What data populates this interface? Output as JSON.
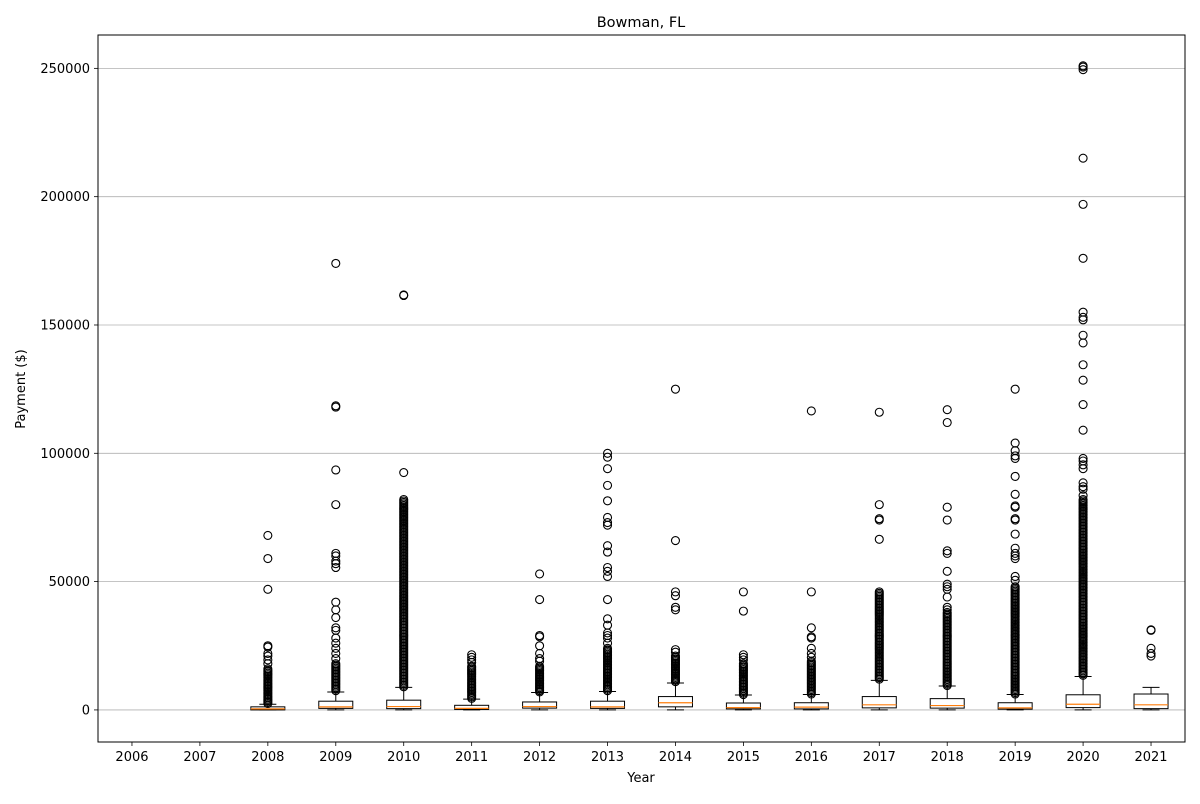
{
  "chart_data": {
    "type": "box",
    "title": "Bowman, FL",
    "xlabel": "Year",
    "ylabel": "Payment ($)",
    "ylim": [
      -12500,
      263000
    ],
    "yticks": [
      0,
      50000,
      100000,
      150000,
      200000,
      250000
    ],
    "grid": "y-major",
    "legend": "none",
    "colors": {
      "box": "#000000",
      "median": "#ff7f0e",
      "grid": "#b0b0b0"
    },
    "categories": [
      "2006",
      "2007",
      "2008",
      "2009",
      "2010",
      "2011",
      "2012",
      "2013",
      "2014",
      "2015",
      "2016",
      "2017",
      "2018",
      "2019",
      "2020",
      "2021"
    ],
    "boxes": [
      {
        "year": "2006",
        "empty": true
      },
      {
        "year": "2007",
        "empty": true
      },
      {
        "year": "2008",
        "whislo": 0,
        "q1": 0,
        "med": 400,
        "q3": 1200,
        "whishi": 2200,
        "dense_range": [
          2500,
          16000
        ],
        "fliers": [
          47000,
          59000,
          68000,
          25000,
          24500,
          22000,
          21000,
          19500,
          18000
        ]
      },
      {
        "year": "2009",
        "whislo": 0,
        "q1": 600,
        "med": 1200,
        "q3": 3400,
        "whishi": 7000,
        "dense_range": [
          7500,
          18000
        ],
        "fliers": [
          174000,
          118500,
          118000,
          93500,
          80000,
          61000,
          60000,
          58000,
          57000,
          55500,
          42000,
          39000,
          36000,
          32000,
          31000,
          28000,
          26000,
          24000,
          22000,
          20000
        ]
      },
      {
        "year": "2010",
        "whislo": 0,
        "q1": 500,
        "med": 1300,
        "q3": 3800,
        "whishi": 8800,
        "dense_range": [
          9000,
          82000
        ],
        "fliers": [
          161500,
          161700,
          92500
        ]
      },
      {
        "year": "2011",
        "whislo": 0,
        "q1": 200,
        "med": 600,
        "q3": 1800,
        "whishi": 4200,
        "dense_range": [
          4500,
          17000
        ],
        "fliers": [
          21500,
          20500,
          19500,
          18500
        ]
      },
      {
        "year": "2012",
        "whislo": 0,
        "q1": 700,
        "med": 1300,
        "q3": 3100,
        "whishi": 6800,
        "dense_range": [
          7000,
          17000
        ],
        "fliers": [
          53000,
          43000,
          29000,
          28500,
          25000,
          22000,
          20000,
          19000
        ]
      },
      {
        "year": "2013",
        "whislo": 0,
        "q1": 600,
        "med": 1200,
        "q3": 3400,
        "whishi": 7200,
        "dense_range": [
          7500,
          24000
        ],
        "fliers": [
          100000,
          98500,
          94000,
          87500,
          81500,
          75000,
          73000,
          72000,
          64000,
          61500,
          55500,
          54000,
          52000,
          43000,
          35500,
          33000,
          30000,
          29000,
          28000,
          26000
        ]
      },
      {
        "year": "2014",
        "whislo": 0,
        "q1": 1200,
        "med": 2800,
        "q3": 5200,
        "whishi": 10500,
        "dense_range": [
          11000,
          21000
        ],
        "fliers": [
          125000,
          66000,
          46000,
          44500,
          40000,
          39000,
          23500,
          22500
        ]
      },
      {
        "year": "2015",
        "whislo": 0,
        "q1": 400,
        "med": 900,
        "q3": 2700,
        "whishi": 5800,
        "dense_range": [
          6000,
          18000
        ],
        "fliers": [
          46000,
          38500,
          21500,
          20500,
          19500
        ]
      },
      {
        "year": "2016",
        "whislo": 0,
        "q1": 400,
        "med": 1100,
        "q3": 2800,
        "whishi": 6000,
        "dense_range": [
          6200,
          19000
        ],
        "fliers": [
          116500,
          46000,
          32000,
          28500,
          28000,
          24000,
          22000,
          20500
        ]
      },
      {
        "year": "2017",
        "whislo": 0,
        "q1": 800,
        "med": 2000,
        "q3": 5200,
        "whishi": 11500,
        "dense_range": [
          12000,
          46000
        ],
        "fliers": [
          116000,
          80000,
          74500,
          74000,
          66500
        ]
      },
      {
        "year": "2018",
        "whislo": 0,
        "q1": 700,
        "med": 1700,
        "q3": 4400,
        "whishi": 9300,
        "dense_range": [
          9500,
          38000
        ],
        "fliers": [
          117000,
          112000,
          79000,
          74000,
          62000,
          61000,
          54000,
          49000,
          48000,
          47000,
          44000,
          40000,
          39000
        ]
      },
      {
        "year": "2019",
        "whislo": 0,
        "q1": 300,
        "med": 800,
        "q3": 2800,
        "whishi": 6000,
        "dense_range": [
          6200,
          48000
        ],
        "fliers": [
          125000,
          104000,
          101000,
          99000,
          98000,
          91000,
          84000,
          79500,
          79000,
          74500,
          74000,
          68500,
          63000,
          61000,
          60000,
          59000,
          52000,
          50500
        ]
      },
      {
        "year": "2020",
        "whislo": 0,
        "q1": 900,
        "med": 2200,
        "q3": 5900,
        "whishi": 13000,
        "dense_range": [
          13500,
          82000
        ],
        "fliers": [
          251000,
          249500,
          250500,
          215000,
          197000,
          176000,
          155000,
          153000,
          152000,
          146000,
          143000,
          134500,
          128500,
          119000,
          109000,
          98000,
          97000,
          95500,
          94000,
          88500,
          87000,
          86000,
          83500
        ]
      },
      {
        "year": "2021",
        "whislo": 0,
        "q1": 500,
        "med": 2000,
        "q3": 6200,
        "whishi": 8800,
        "dense_range": null,
        "fliers": [
          31000,
          31200,
          24000,
          22000,
          21000
        ]
      }
    ]
  }
}
